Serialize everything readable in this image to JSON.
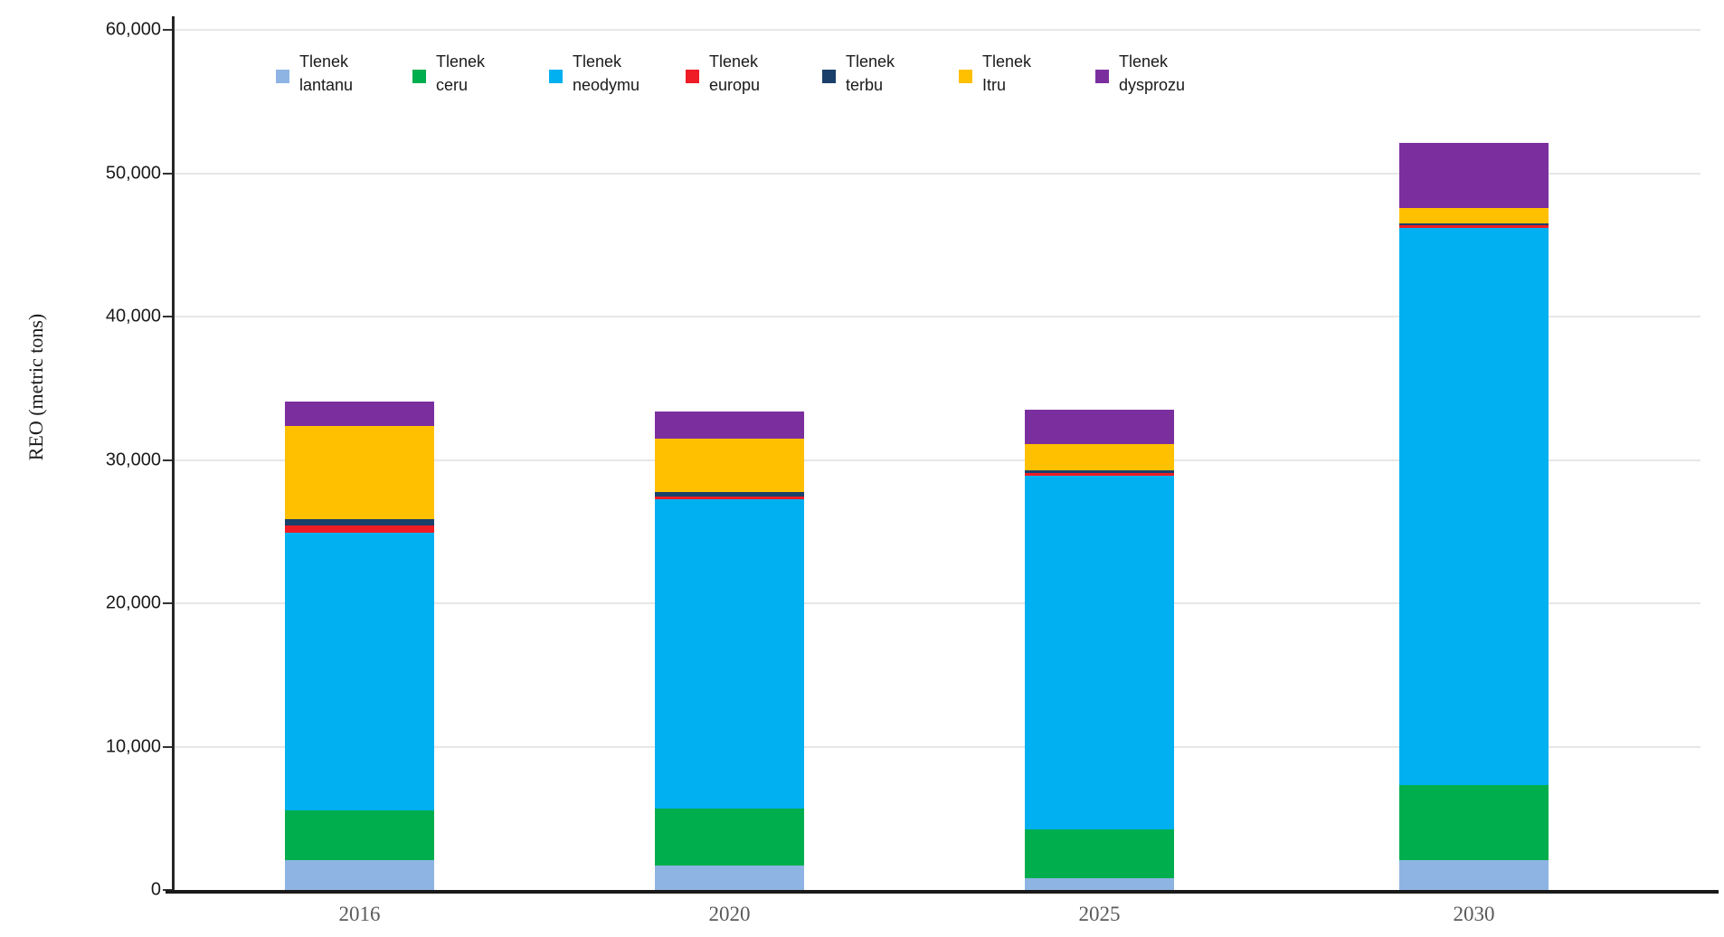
{
  "chart_data": {
    "type": "bar",
    "subtype": "stacked-vertical",
    "title": "",
    "xlabel": "",
    "ylabel": "REO (metric tons)",
    "ylim": [
      0,
      60000
    ],
    "grid": "horizontal",
    "legend_position": "top",
    "y_ticks": [
      {
        "value": 0,
        "label": "0"
      },
      {
        "value": 10000,
        "label": "10,000"
      },
      {
        "value": 20000,
        "label": "20,000"
      },
      {
        "value": 30000,
        "label": "30,000"
      },
      {
        "value": 40000,
        "label": "40,000"
      },
      {
        "value": 50000,
        "label": "50,000"
      },
      {
        "value": 60000,
        "label": "60,000"
      }
    ],
    "categories": [
      "2016",
      "2020",
      "2025",
      "2030"
    ],
    "series": [
      {
        "name": "Tlenek lantanu",
        "legend_lines": [
          "Tlenek",
          "lantanu"
        ],
        "color": "#8EB4E3",
        "values": [
          2100,
          1700,
          800,
          2100
        ]
      },
      {
        "name": "Tlenek ceru",
        "legend_lines": [
          "Tlenek",
          "ceru"
        ],
        "color": "#00AE4E",
        "values": [
          3450,
          3950,
          3400,
          5250
        ]
      },
      {
        "name": "Tlenek neodymu",
        "legend_lines": [
          "Tlenek",
          "neodymu"
        ],
        "color": "#00B0F0",
        "values": [
          19400,
          21600,
          24700,
          38850
        ]
      },
      {
        "name": "Tlenek europu",
        "legend_lines": [
          "Tlenek",
          "europu"
        ],
        "color": "#EF1C25",
        "values": [
          500,
          200,
          200,
          150
        ]
      },
      {
        "name": "Tlenek terbu",
        "legend_lines": [
          "Tlenek",
          "terbu"
        ],
        "color": "#1B4069",
        "values": [
          400,
          300,
          200,
          150
        ]
      },
      {
        "name": "Tlenek Itru",
        "legend_lines": [
          "Tlenek",
          "Itru"
        ],
        "color": "#FFC000",
        "values": [
          6500,
          3750,
          1800,
          1100
        ]
      },
      {
        "name": "Tlenek dysprozu",
        "legend_lines": [
          "Tlenek",
          "dysprozu"
        ],
        "color": "#7B2F9F",
        "values": [
          1700,
          1900,
          2400,
          4500
        ]
      }
    ],
    "totals": [
      34050,
      33400,
      33500,
      52100
    ]
  }
}
